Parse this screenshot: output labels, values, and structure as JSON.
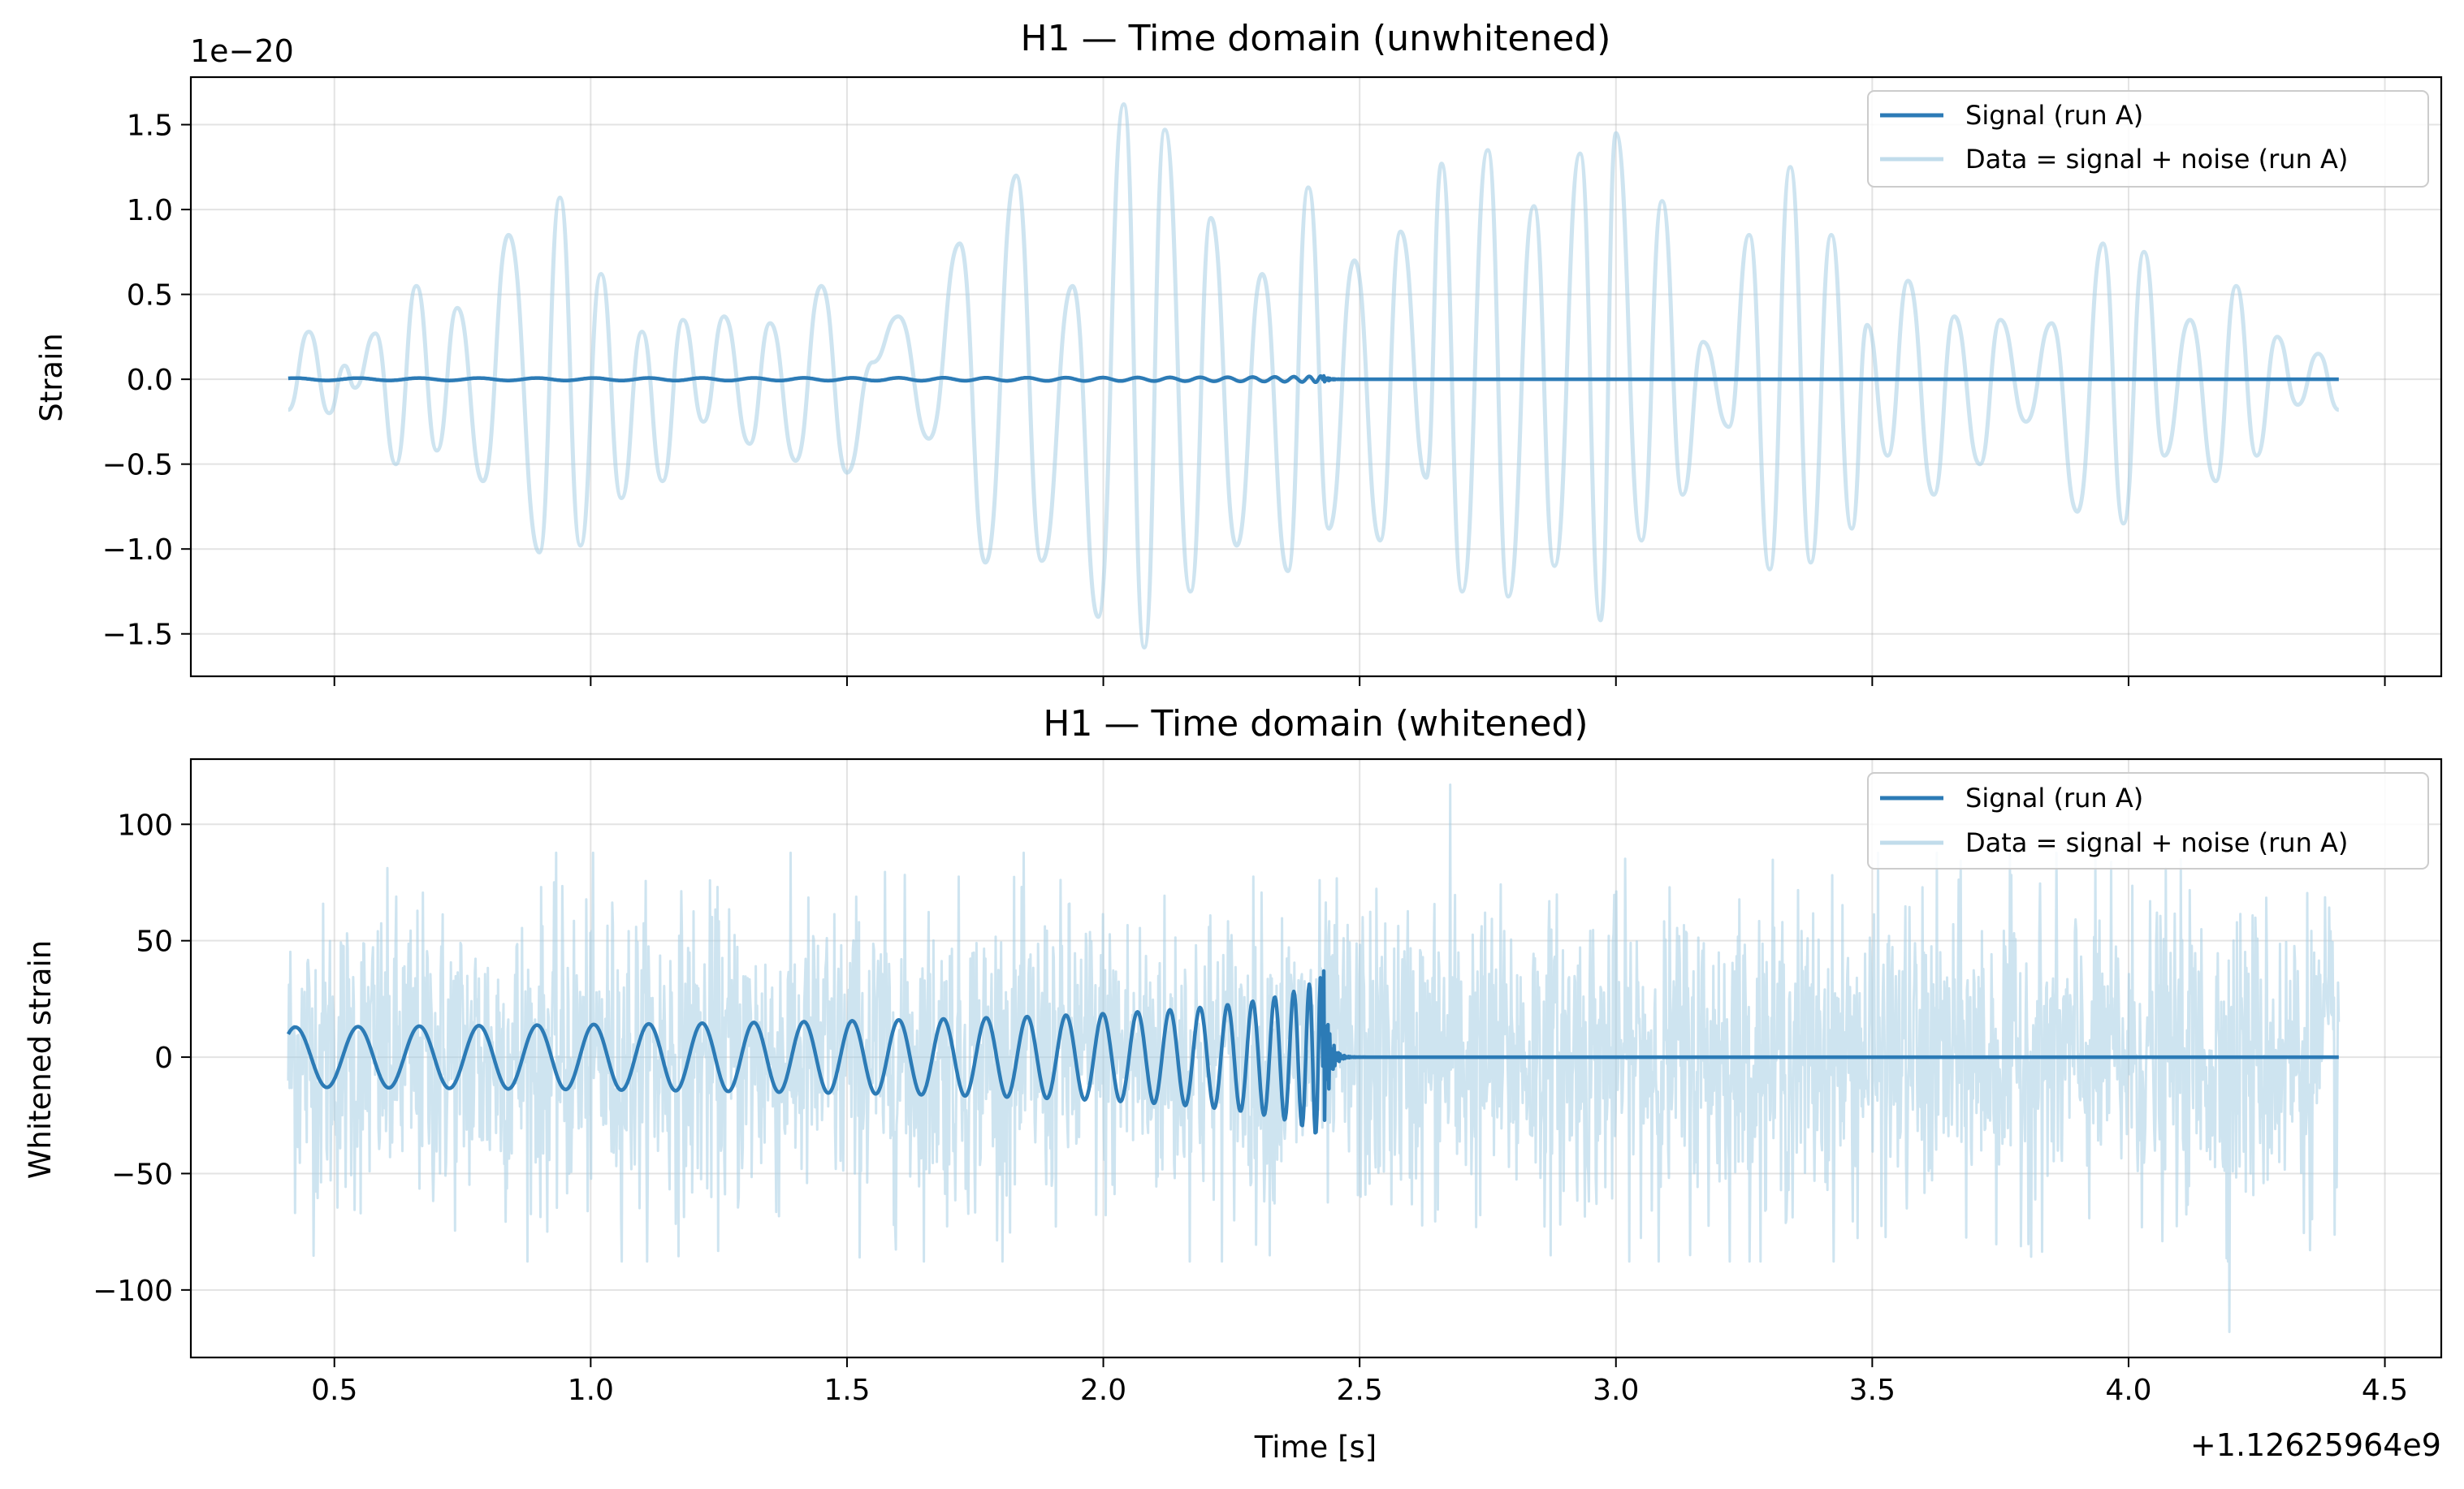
{
  "chart_data": [
    {
      "type": "line",
      "title": "H1 — Time domain (unwhitened)",
      "xlabel": "",
      "ylabel": "Strain",
      "y_offset_text": "1e−20",
      "xlim": [
        0.22,
        4.61
      ],
      "ylim": [
        -1.75,
        1.78
      ],
      "x_ticks": [
        0.5,
        1.0,
        1.5,
        2.0,
        2.5,
        3.0,
        3.5,
        4.0,
        4.5
      ],
      "x_tick_labels_visible": false,
      "y_ticks": [
        -1.5,
        -1.0,
        -0.5,
        0.0,
        0.5,
        1.0,
        1.5
      ],
      "y_tick_labels": [
        "−1.5",
        "−1.0",
        "−0.5",
        "0.0",
        "0.5",
        "1.0",
        "1.5"
      ],
      "grid": true,
      "legend_position": "upper right",
      "series": [
        {
          "name": "Signal (run A)",
          "color": "#2c7bb6",
          "x_range": [
            0.41,
            4.41
          ],
          "waveform": "chirp",
          "merger_time": 2.43,
          "peak_amplitude": 0.02
        },
        {
          "name": "Data = signal + noise (run A)",
          "color": "#a6cde3",
          "x_range": [
            0.41,
            4.41
          ],
          "waveform": "oscillating noise",
          "points": [
            [
              0.41,
              -0.18
            ],
            [
              0.45,
              0.28
            ],
            [
              0.49,
              -0.2
            ],
            [
              0.52,
              0.08
            ],
            [
              0.54,
              -0.05
            ],
            [
              0.58,
              0.27
            ],
            [
              0.62,
              -0.5
            ],
            [
              0.66,
              0.55
            ],
            [
              0.7,
              -0.42
            ],
            [
              0.74,
              0.42
            ],
            [
              0.79,
              -0.6
            ],
            [
              0.84,
              0.85
            ],
            [
              0.9,
              -1.02
            ],
            [
              0.94,
              1.07
            ],
            [
              0.98,
              -0.98
            ],
            [
              1.02,
              0.62
            ],
            [
              1.06,
              -0.7
            ],
            [
              1.1,
              0.28
            ],
            [
              1.14,
              -0.6
            ],
            [
              1.18,
              0.35
            ],
            [
              1.22,
              -0.25
            ],
            [
              1.26,
              0.37
            ],
            [
              1.31,
              -0.38
            ],
            [
              1.35,
              0.33
            ],
            [
              1.4,
              -0.48
            ],
            [
              1.45,
              0.55
            ],
            [
              1.5,
              -0.55
            ],
            [
              1.55,
              0.1
            ],
            [
              1.6,
              0.37
            ],
            [
              1.66,
              -0.35
            ],
            [
              1.72,
              0.8
            ],
            [
              1.77,
              -1.08
            ],
            [
              1.83,
              1.2
            ],
            [
              1.88,
              -1.07
            ],
            [
              1.94,
              0.55
            ],
            [
              1.99,
              -1.4
            ],
            [
              2.04,
              1.62
            ],
            [
              2.08,
              -1.58
            ],
            [
              2.12,
              1.47
            ],
            [
              2.17,
              -1.25
            ],
            [
              2.21,
              0.95
            ],
            [
              2.26,
              -0.98
            ],
            [
              2.31,
              0.62
            ],
            [
              2.36,
              -1.13
            ],
            [
              2.4,
              1.13
            ],
            [
              2.44,
              -0.88
            ],
            [
              2.49,
              0.7
            ],
            [
              2.54,
              -0.95
            ],
            [
              2.58,
              0.87
            ],
            [
              2.63,
              -0.58
            ],
            [
              2.66,
              1.27
            ],
            [
              2.7,
              -1.25
            ],
            [
              2.75,
              1.35
            ],
            [
              2.79,
              -1.28
            ],
            [
              2.84,
              1.02
            ],
            [
              2.88,
              -1.1
            ],
            [
              2.93,
              1.33
            ],
            [
              2.97,
              -1.42
            ],
            [
              3.0,
              1.45
            ],
            [
              3.05,
              -0.95
            ],
            [
              3.09,
              1.05
            ],
            [
              3.13,
              -0.68
            ],
            [
              3.17,
              0.22
            ],
            [
              3.22,
              -0.28
            ],
            [
              3.26,
              0.85
            ],
            [
              3.3,
              -1.12
            ],
            [
              3.34,
              1.25
            ],
            [
              3.38,
              -1.08
            ],
            [
              3.42,
              0.85
            ],
            [
              3.46,
              -0.88
            ],
            [
              3.49,
              0.32
            ],
            [
              3.53,
              -0.45
            ],
            [
              3.57,
              0.58
            ],
            [
              3.62,
              -0.68
            ],
            [
              3.66,
              0.37
            ],
            [
              3.71,
              -0.5
            ],
            [
              3.75,
              0.35
            ],
            [
              3.8,
              -0.25
            ],
            [
              3.85,
              0.33
            ],
            [
              3.9,
              -0.78
            ],
            [
              3.95,
              0.8
            ],
            [
              3.99,
              -0.85
            ],
            [
              4.03,
              0.75
            ],
            [
              4.07,
              -0.45
            ],
            [
              4.12,
              0.35
            ],
            [
              4.17,
              -0.6
            ],
            [
              4.21,
              0.55
            ],
            [
              4.25,
              -0.45
            ],
            [
              4.29,
              0.25
            ],
            [
              4.33,
              -0.15
            ],
            [
              4.37,
              0.15
            ],
            [
              4.41,
              -0.18
            ]
          ]
        }
      ]
    },
    {
      "type": "line",
      "title": "H1 — Time domain (whitened)",
      "xlabel": "Time [s]",
      "ylabel": "Whitened strain",
      "x_offset_text": "+1.12625964e9",
      "xlim": [
        0.22,
        4.61
      ],
      "ylim": [
        -129,
        128
      ],
      "x_ticks": [
        0.5,
        1.0,
        1.5,
        2.0,
        2.5,
        3.0,
        3.5,
        4.0,
        4.5
      ],
      "x_tick_labels": [
        "0.5",
        "1.0",
        "1.5",
        "2.0",
        "2.5",
        "3.0",
        "3.5",
        "4.0",
        "4.5"
      ],
      "y_ticks": [
        -100,
        -50,
        0,
        50,
        100
      ],
      "y_tick_labels": [
        "−100",
        "−50",
        "0",
        "50",
        "100"
      ],
      "grid": true,
      "legend_position": "upper right",
      "series": [
        {
          "name": "Signal (run A)",
          "color": "#2c7bb6",
          "x_range": [
            0.41,
            4.41
          ],
          "waveform": "chirp",
          "merger_time": 2.43,
          "peak_amplitude": 37,
          "min_value": -35
        },
        {
          "name": "Data = signal + noise (run A)",
          "color": "#a6cde3",
          "x_range": [
            0.41,
            4.41
          ],
          "waveform": "white noise",
          "typical_range": [
            -65,
            65
          ],
          "max_value": 117,
          "min_value": -118
        }
      ]
    }
  ]
}
